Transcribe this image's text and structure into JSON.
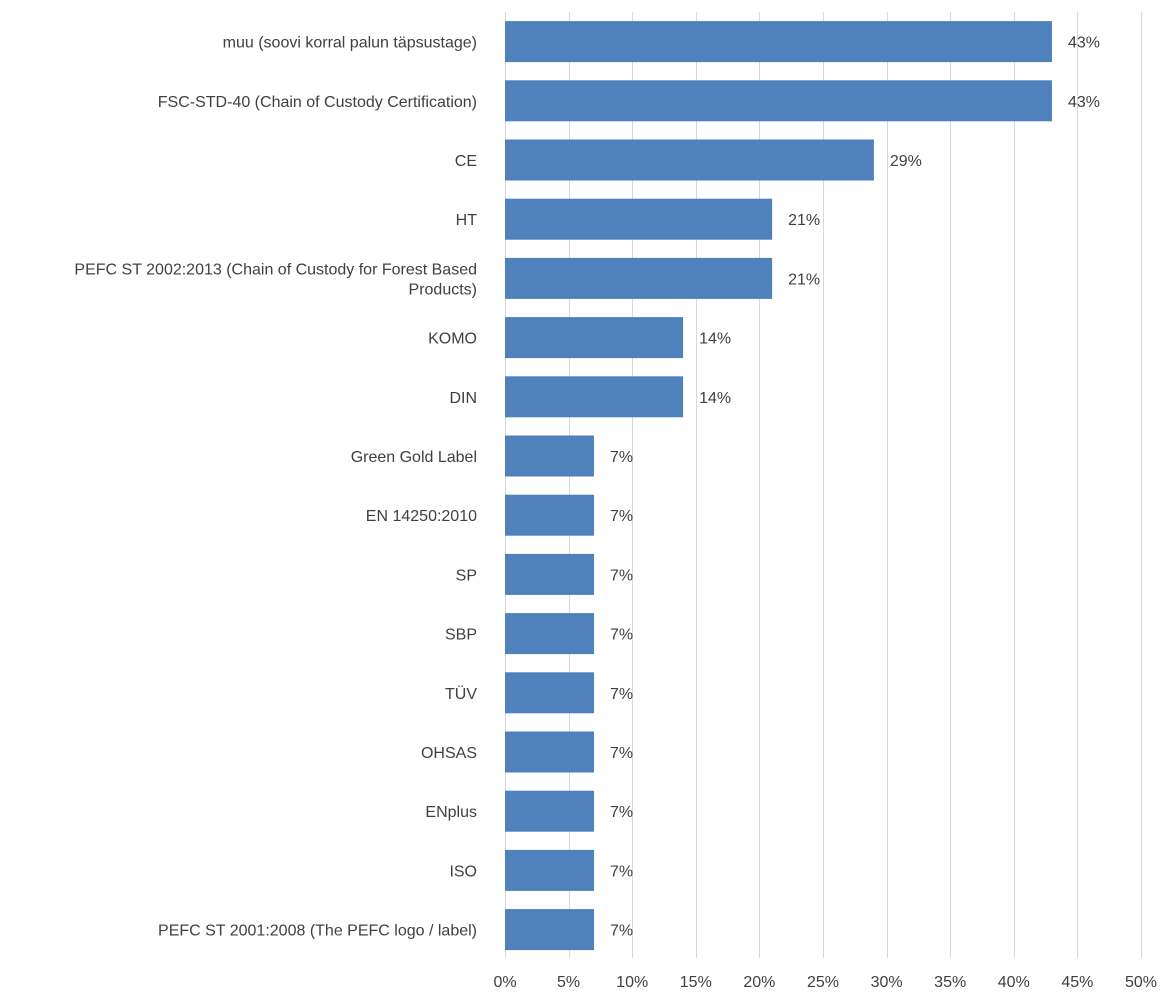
{
  "chart_data": {
    "type": "bar",
    "orientation": "horizontal",
    "categories": [
      "muu (soovi korral palun täpsustage)",
      "FSC-STD-40 (Chain of Custody Certification)",
      "CE",
      "HT",
      "PEFC ST 2002:2013 (Chain of Custody for Forest Based Products)",
      "KOMO",
      "DIN",
      "Green Gold Label",
      "EN 14250:2010",
      "SP",
      "SBP",
      "TÜV",
      "OHSAS",
      "ENplus",
      "ISO",
      "PEFC ST 2001:2008 (The PEFC logo / label)"
    ],
    "category_lines": [
      [
        "muu (soovi korral palun täpsustage)"
      ],
      [
        "FSC-STD-40 (Chain of Custody Certification)"
      ],
      [
        "CE"
      ],
      [
        "HT"
      ],
      [
        "PEFC ST 2002:2013 (Chain of Custody for Forest Based",
        "Products)"
      ],
      [
        "KOMO"
      ],
      [
        "DIN"
      ],
      [
        "Green Gold Label"
      ],
      [
        "EN 14250:2010"
      ],
      [
        "SP"
      ],
      [
        "SBP"
      ],
      [
        "TÜV"
      ],
      [
        "OHSAS"
      ],
      [
        "ENplus"
      ],
      [
        "ISO"
      ],
      [
        "PEFC ST 2001:2008 (The PEFC logo / label)"
      ]
    ],
    "values": [
      43,
      43,
      29,
      21,
      21,
      14,
      14,
      7,
      7,
      7,
      7,
      7,
      7,
      7,
      7,
      7
    ],
    "data_labels": [
      "43%",
      "43%",
      "29%",
      "21%",
      "21%",
      "14%",
      "14%",
      "7%",
      "7%",
      "7%",
      "7%",
      "7%",
      "7%",
      "7%",
      "7%",
      "7%"
    ],
    "x_ticks": [
      0,
      5,
      10,
      15,
      20,
      25,
      30,
      35,
      40,
      45,
      50
    ],
    "x_tick_labels": [
      "0%",
      "5%",
      "10%",
      "15%",
      "20%",
      "25%",
      "30%",
      "35%",
      "40%",
      "45%",
      "50%"
    ],
    "xlim": [
      0,
      50
    ],
    "title": "",
    "xlabel": "",
    "ylabel": "",
    "grid": true,
    "legend": "none",
    "bar_color": "#4f81bd"
  }
}
